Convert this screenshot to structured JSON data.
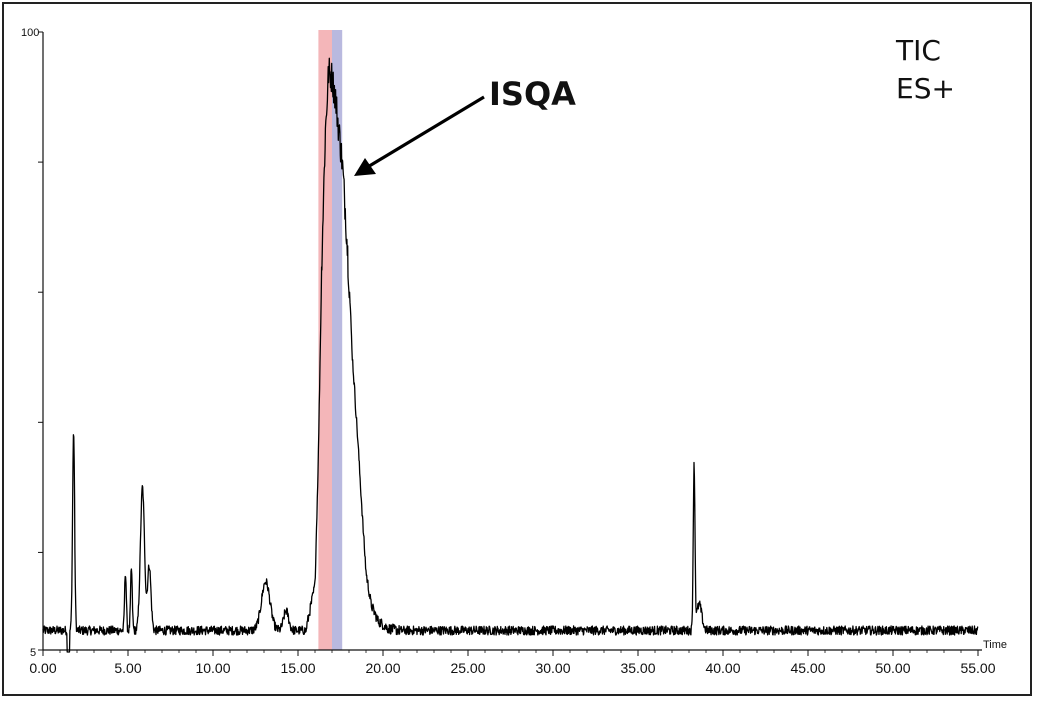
{
  "chart_data": {
    "type": "line",
    "title": "",
    "xlabel": "Time",
    "ylabel": "",
    "xlim": [
      0,
      55
    ],
    "ylim": [
      5,
      100
    ],
    "x_ticks": [
      "0.00",
      "5.00",
      "10.00",
      "15.00",
      "20.00",
      "25.00",
      "30.00",
      "35.00",
      "40.00",
      "45.00",
      "50.00",
      "55.00"
    ],
    "y_tick_labels": {
      "top": "100",
      "bottom": "5"
    },
    "corner_text": [
      "TIC",
      "ES+"
    ],
    "annotation": {
      "label": "ISQA",
      "points_to_x": 17.8,
      "points_to_y": 79
    },
    "shaded_regions": [
      {
        "x_start": 16.2,
        "x_end": 17.0,
        "color": "#f4b6b9"
      },
      {
        "x_start": 17.0,
        "x_end": 17.6,
        "color": "#b9b9df"
      }
    ],
    "series": [
      {
        "color": "#000000",
        "peaks": [
          {
            "x": 1.8,
            "height": 30.5,
            "width": 0.06
          },
          {
            "x": 4.85,
            "height": 9.0,
            "width": 0.05
          },
          {
            "x": 5.2,
            "height": 9.5,
            "width": 0.05
          },
          {
            "x": 5.85,
            "height": 22.0,
            "width": 0.12
          },
          {
            "x": 6.25,
            "height": 10.0,
            "width": 0.1
          },
          {
            "x": 13.1,
            "height": 7.5,
            "width": 0.25
          },
          {
            "x": 14.3,
            "height": 3.0,
            "width": 0.15
          },
          {
            "x": 38.3,
            "height": 25.0,
            "width": 0.05
          },
          {
            "x": 38.6,
            "height": 4.0,
            "width": 0.15
          }
        ],
        "major_peak": {
          "points": [
            [
              15.5,
              8.5
            ],
            [
              16.0,
              15.0
            ],
            [
              16.2,
              35.0
            ],
            [
              16.4,
              65.0
            ],
            [
              16.6,
              84.0
            ],
            [
              16.8,
              94.0
            ],
            [
              17.0,
              93.0
            ],
            [
              17.2,
              90.0
            ],
            [
              17.4,
              85.0
            ],
            [
              17.6,
              80.0
            ],
            [
              17.8,
              72.0
            ],
            [
              18.0,
              62.0
            ],
            [
              18.2,
              50.0
            ],
            [
              18.5,
              38.0
            ],
            [
              18.8,
              25.0
            ],
            [
              19.0,
              17.0
            ],
            [
              19.3,
              12.0
            ],
            [
              19.7,
              9.5
            ],
            [
              20.3,
              8.3
            ],
            [
              21.0,
              8.0
            ]
          ]
        },
        "baseline": 8.0,
        "noise": 0.7,
        "drop": {
          "x": 1.5,
          "value": 4.7
        }
      }
    ]
  }
}
